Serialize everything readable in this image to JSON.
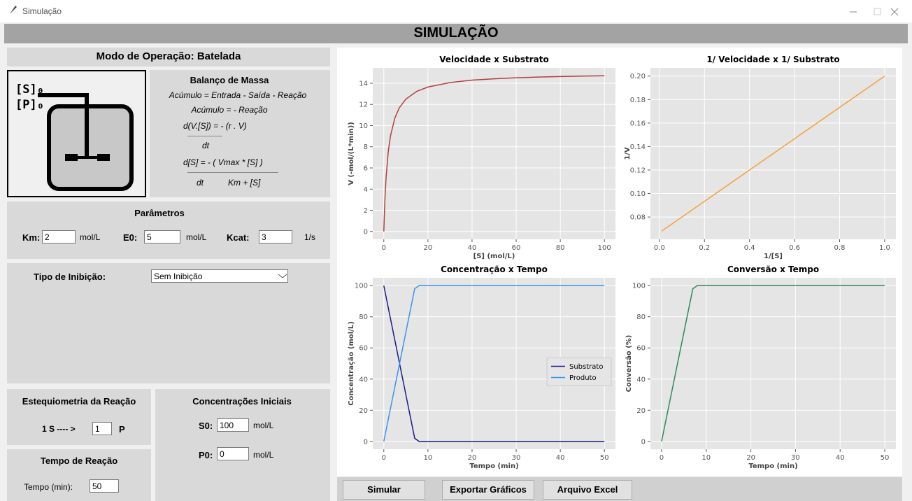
{
  "window": {
    "title": "Simulação"
  },
  "header": {
    "title": "SIMULAÇÃO"
  },
  "mode": {
    "title": "Modo de Operação: Batelada"
  },
  "reactor": {
    "labels": [
      "[S]₀",
      "[P]₀"
    ]
  },
  "mass_balance": {
    "title": "Balanço de Massa",
    "lines": [
      "Acúmulo = Entrada - Saída - Reação",
      "Acúmulo = - Reação",
      "d(V.[S]) = - (r . V)",
      "dt",
      "d[S] = - ( Vmax * [S] )",
      "dt",
      "Km + [S]"
    ]
  },
  "parameters": {
    "title": "Parâmetros",
    "fields": [
      {
        "label": "Km:",
        "value": "2",
        "unit": "mol/L"
      },
      {
        "label": "E0:",
        "value": "5",
        "unit": "mol/L"
      },
      {
        "label": "Kcat:",
        "value": "3",
        "unit": "1/s"
      }
    ]
  },
  "inhibition": {
    "label": "Tipo de Inibição:",
    "selected": "Sem Inibição"
  },
  "stoichiometry": {
    "title": "Estequiometria da Reação",
    "left": "1 S ---- >",
    "value": "1",
    "right": "P"
  },
  "initial_concentrations": {
    "title": "Concentrações Iniciais",
    "fields": [
      {
        "label": "S0:",
        "value": "100",
        "unit": "mol/L"
      },
      {
        "label": "P0:",
        "value": "0",
        "unit": "mol/L"
      }
    ]
  },
  "reaction_time": {
    "title": "Tempo de Reação",
    "label": "Tempo (min):",
    "value": "50"
  },
  "buttons": [
    "Simular",
    "Exportar Gráficos",
    "Arquivo Excel"
  ],
  "chart_data": [
    {
      "type": "line",
      "title": "Velocidade x Substrato",
      "x_label": "[S] (mol/L)",
      "y_label": "V (-mol/(L*min))",
      "x": [
        0,
        0.5,
        1,
        2,
        3,
        5,
        7,
        10,
        15,
        20,
        30,
        40,
        50,
        60,
        70,
        80,
        90,
        100
      ],
      "values": [
        0,
        3,
        5,
        7.5,
        9,
        10.71,
        11.67,
        12.5,
        13.24,
        13.64,
        14.06,
        14.29,
        14.42,
        14.52,
        14.58,
        14.63,
        14.67,
        14.71
      ],
      "color": "#b2403b",
      "xlim": [
        -5,
        105
      ],
      "ylim": [
        -0.74,
        15.45
      ],
      "xticks": [
        0,
        20,
        40,
        60,
        80,
        100
      ],
      "yticks": [
        0,
        2,
        4,
        6,
        8,
        10,
        12,
        14
      ],
      "grid": true
    },
    {
      "type": "line",
      "title": "1/ Velocidade x 1/ Substrato",
      "x_label": "1/[S]",
      "y_label": "1/V",
      "x": [
        0.01,
        1
      ],
      "values": [
        0.068,
        0.2
      ],
      "color": "#f4a13a",
      "xlim": [
        -0.04,
        1.05
      ],
      "ylim": [
        0.061,
        0.207
      ],
      "xticks": [
        {
          "value": 0,
          "label": "0.0"
        },
        0.2,
        0.4,
        0.6,
        0.8,
        {
          "value": 1,
          "label": "1.0"
        }
      ],
      "yticks": [
        0.08,
        {
          "value": 0.1,
          "label": "0.10"
        },
        0.12,
        0.14,
        0.16,
        0.18,
        {
          "value": 0.2,
          "label": "0.20"
        }
      ],
      "grid": true
    },
    {
      "type": "line",
      "title": "Concentração x Tempo",
      "x_label": "Tempo (min)",
      "y_label": "Concentração (mol/L)",
      "x": [
        0,
        7,
        8,
        50
      ],
      "series": [
        {
          "name": "Substrato",
          "color": "#1c1c8a",
          "values": [
            100,
            2,
            0,
            0
          ]
        },
        {
          "name": "Produto",
          "color": "#3b93f0",
          "values": [
            0,
            98,
            100,
            100
          ]
        }
      ],
      "xlim": [
        -2.5,
        52.5
      ],
      "ylim": [
        -5,
        105
      ],
      "xticks": [
        0,
        10,
        20,
        30,
        40,
        50
      ],
      "yticks": [
        0,
        20,
        40,
        60,
        80,
        100
      ],
      "grid": true,
      "legend": "center right"
    },
    {
      "type": "line",
      "title": "Conversão x Tempo",
      "x_label": "Tempo (min)",
      "y_label": "Conversão (%)",
      "x": [
        0,
        7,
        8,
        50
      ],
      "values": [
        0,
        98,
        100,
        100
      ],
      "color": "#2e8b57",
      "xlim": [
        -2.5,
        52.5
      ],
      "ylim": [
        -5,
        105
      ],
      "xticks": [
        0,
        10,
        20,
        30,
        40,
        50
      ],
      "yticks": [
        0,
        20,
        40,
        60,
        80,
        100
      ],
      "grid": true
    }
  ]
}
